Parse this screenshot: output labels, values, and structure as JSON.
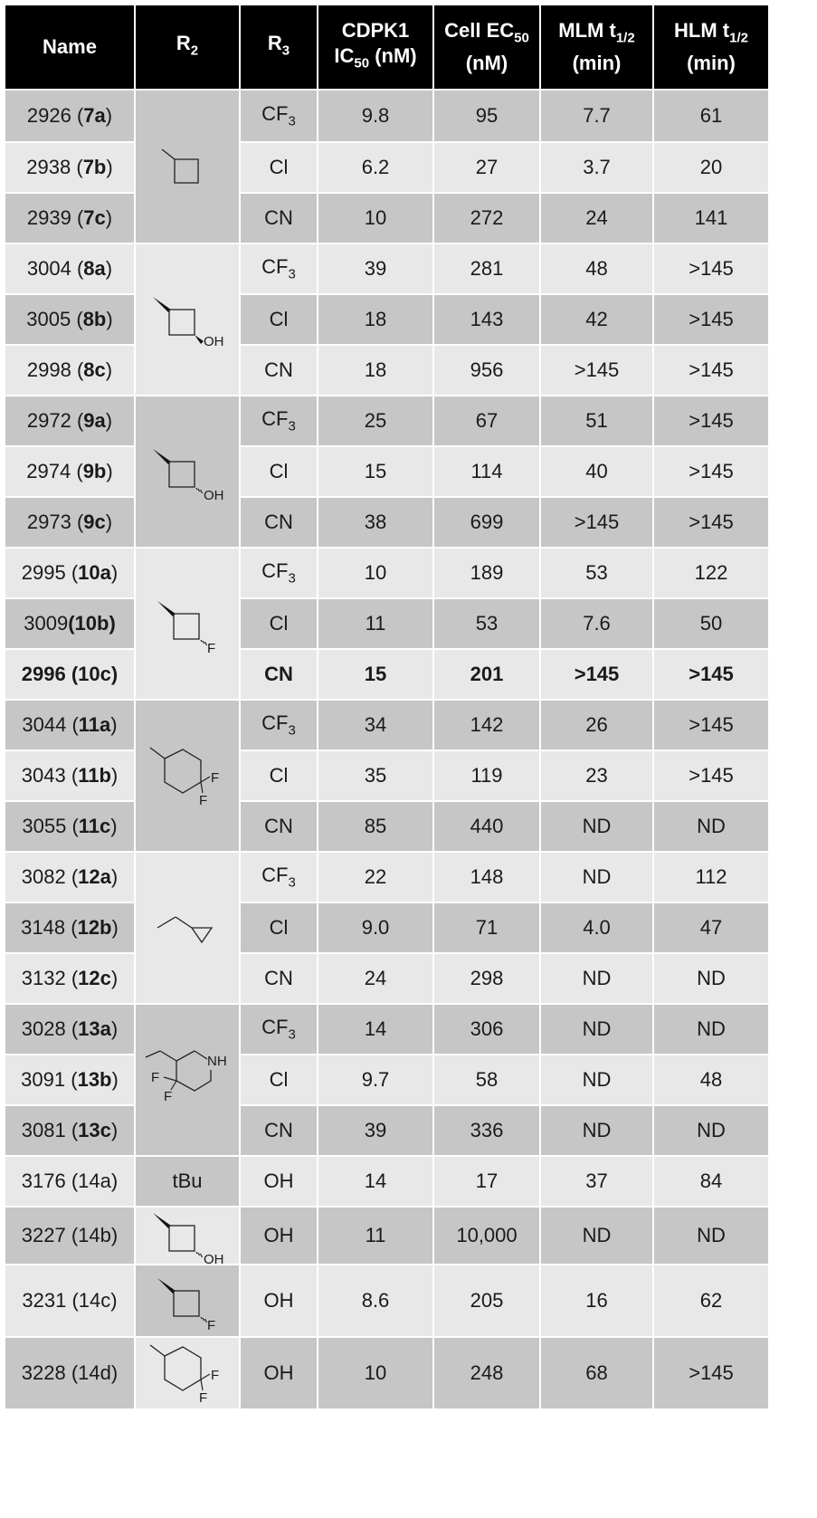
{
  "headers": {
    "name": "Name",
    "r2": "R",
    "r2_sub": "2",
    "r3": "R",
    "r3_sub": "3",
    "cdpk1_l1": "CDPK1",
    "cdpk1_ic": "IC",
    "cdpk1_sub": "50",
    "cdpk1_unit": " (nM)",
    "cell_l1": "Cell EC",
    "cell_sub": "50",
    "cell_unit": "(nM)",
    "mlm_l1": "MLM t",
    "mlm_sub": "1/2",
    "mlm_unit": "(min)",
    "hlm_l1": "HLM t",
    "hlm_sub": "1/2",
    "hlm_unit": "(min)"
  },
  "structure_labels": {
    "oh": "OH",
    "f": "F",
    "nh": "NH",
    "tbu": "tBu"
  },
  "r3_values": {
    "cf3_main": "CF",
    "cf3_sub": "3",
    "cl": "Cl",
    "cn": "CN",
    "oh": "OH"
  },
  "rows": [
    {
      "id": "2926",
      "cmpd": "7a",
      "ic50": "9.8",
      "ec50": "95",
      "mlm": "7.7",
      "hlm": "61"
    },
    {
      "id": "2938",
      "cmpd": "7b",
      "ic50": "6.2",
      "ec50": "27",
      "mlm": "3.7",
      "hlm": "20"
    },
    {
      "id": "2939",
      "cmpd": "7c",
      "ic50": "10",
      "ec50": "272",
      "mlm": "24",
      "hlm": "141"
    },
    {
      "id": "3004",
      "cmpd": "8a",
      "ic50": "39",
      "ec50": "281",
      "mlm": "48",
      "hlm": ">145"
    },
    {
      "id": "3005",
      "cmpd": "8b",
      "ic50": "18",
      "ec50": "143",
      "mlm": "42",
      "hlm": ">145"
    },
    {
      "id": "2998",
      "cmpd": "8c",
      "ic50": "18",
      "ec50": "956",
      "mlm": ">145",
      "hlm": ">145"
    },
    {
      "id": "2972",
      "cmpd": "9a",
      "ic50": "25",
      "ec50": "67",
      "mlm": "51",
      "hlm": ">145"
    },
    {
      "id": "2974",
      "cmpd": "9b",
      "ic50": "15",
      "ec50": "114",
      "mlm": "40",
      "hlm": ">145"
    },
    {
      "id": "2973",
      "cmpd": "9c",
      "ic50": "38",
      "ec50": "699",
      "mlm": ">145",
      "hlm": ">145"
    },
    {
      "id": "2995",
      "cmpd": "10a",
      "ic50": "10",
      "ec50": "189",
      "mlm": "53",
      "hlm": "122"
    },
    {
      "id": "3009",
      "cmpd": "10b",
      "ic50": "11",
      "ec50": "53",
      "mlm": "7.6",
      "hlm": "50"
    },
    {
      "id": "2996",
      "cmpd": "10c",
      "ic50": "15",
      "ec50": "201",
      "mlm": ">145",
      "hlm": ">145"
    },
    {
      "id": "3044",
      "cmpd": "11a",
      "ic50": "34",
      "ec50": "142",
      "mlm": "26",
      "hlm": ">145"
    },
    {
      "id": "3043",
      "cmpd": "11b",
      "ic50": "35",
      "ec50": "119",
      "mlm": "23",
      "hlm": ">145"
    },
    {
      "id": "3055",
      "cmpd": "11c",
      "ic50": "85",
      "ec50": "440",
      "mlm": "ND",
      "hlm": "ND"
    },
    {
      "id": "3082",
      "cmpd": "12a",
      "ic50": "22",
      "ec50": "148",
      "mlm": "ND",
      "hlm": "112"
    },
    {
      "id": "3148",
      "cmpd": "12b",
      "ic50": "9.0",
      "ec50": "71",
      "mlm": "4.0",
      "hlm": "47"
    },
    {
      "id": "3132",
      "cmpd": "12c",
      "ic50": "24",
      "ec50": "298",
      "mlm": "ND",
      "hlm": "ND"
    },
    {
      "id": "3028",
      "cmpd": "13a",
      "ic50": "14",
      "ec50": "306",
      "mlm": "ND",
      "hlm": "ND"
    },
    {
      "id": "3091",
      "cmpd": "13b",
      "ic50": "9.7",
      "ec50": "58",
      "mlm": "ND",
      "hlm": "48"
    },
    {
      "id": "3081",
      "cmpd": "13c",
      "ic50": "39",
      "ec50": "336",
      "mlm": "ND",
      "hlm": "ND"
    },
    {
      "id": "3176",
      "cmpd": "(14a)",
      "ic50": "14",
      "ec50": "17",
      "mlm": "37",
      "hlm": "84"
    },
    {
      "id": "3227",
      "cmpd": "(14b)",
      "ic50": "11",
      "ec50": "10,000",
      "mlm": "ND",
      "hlm": "ND"
    },
    {
      "id": "3231",
      "cmpd": "(14c)",
      "ic50": "8.6",
      "ec50": "205",
      "mlm": "16",
      "hlm": "62"
    },
    {
      "id": "3228",
      "cmpd": "(14d)",
      "ic50": "10",
      "ec50": "248",
      "mlm": "68",
      "hlm": ">145"
    }
  ]
}
